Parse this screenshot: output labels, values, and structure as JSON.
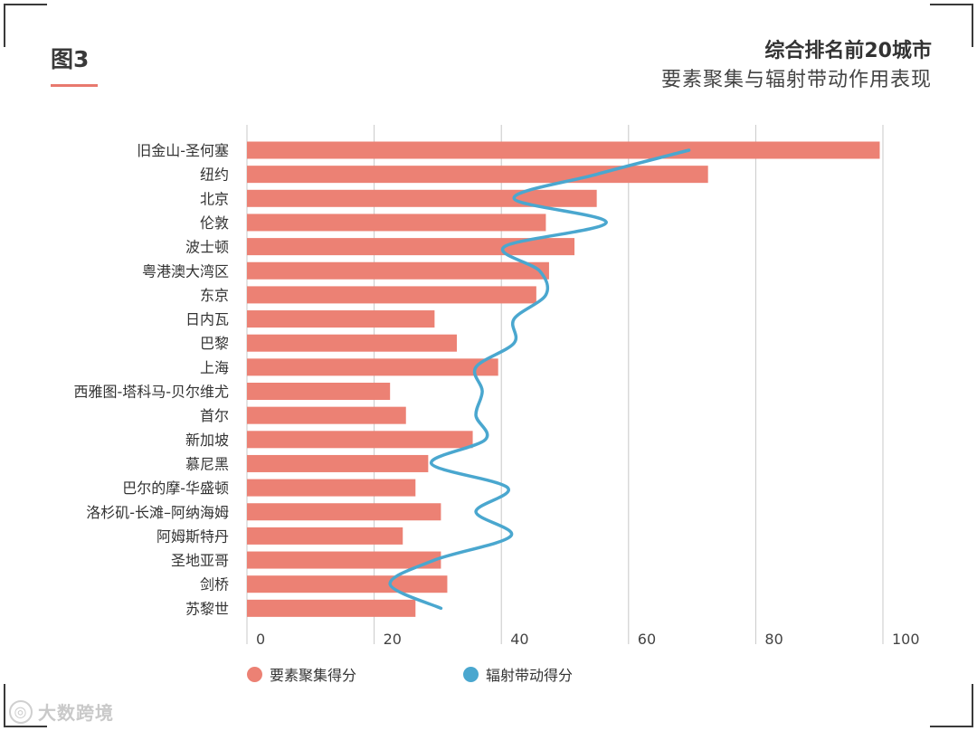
{
  "figure_label": "图3",
  "title_line1": "综合排名前20城市",
  "title_line2": "要素聚集与辐射带动作用表现",
  "watermark": "大数跨境",
  "colors": {
    "bar": "#ec8174",
    "line": "#4aa7cf",
    "grid": "#c8c8c8",
    "accent": "#e8796e"
  },
  "chart_data": {
    "type": "bar",
    "orientation": "horizontal",
    "title": "综合排名前20城市 要素聚集与辐射带动作用表现",
    "categories": [
      "旧金山-圣何塞",
      "纽约",
      "北京",
      "伦敦",
      "波士顿",
      "粤港澳大湾区",
      "东京",
      "日内瓦",
      "巴黎",
      "上海",
      "西雅图-塔科马-贝尔维尤",
      "首尔",
      "新加坡",
      "慕尼黑",
      "巴尔的摩-华盛顿",
      "洛杉矶-长滩–阿纳海姆",
      "阿姆斯特丹",
      "圣地亚哥",
      "剑桥",
      "苏黎世"
    ],
    "xlim": [
      0,
      100
    ],
    "xticks": [
      0,
      20,
      40,
      60,
      80,
      100
    ],
    "series": [
      {
        "name": "要素聚集得分",
        "type": "bar",
        "values": [
          99.5,
          72.5,
          55.0,
          47.0,
          51.5,
          47.5,
          45.5,
          29.5,
          33.0,
          39.5,
          22.5,
          25.0,
          35.5,
          28.5,
          26.5,
          30.5,
          24.5,
          30.5,
          31.5,
          26.5
        ]
      },
      {
        "name": "辐射带动得分",
        "type": "line",
        "values": [
          69.5,
          55.0,
          42.0,
          56.5,
          40.5,
          46.0,
          47.0,
          42.0,
          42.0,
          36.0,
          37.0,
          36.0,
          37.5,
          29.0,
          41.0,
          36.0,
          41.5,
          29.5,
          22.5,
          30.5
        ]
      }
    ],
    "legend": "bottom-left"
  }
}
